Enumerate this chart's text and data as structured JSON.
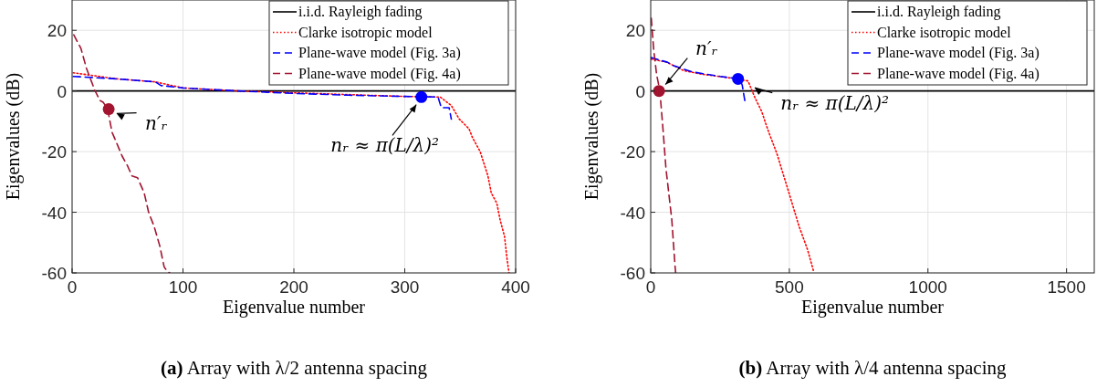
{
  "chart_data": [
    {
      "type": "line",
      "title": "(a) Array with λ/2 antenna spacing",
      "xlabel": "Eigenvalue number",
      "ylabel": "Eigenvalues (dB)",
      "xlim": [
        0,
        400
      ],
      "ylim": [
        -60,
        30
      ],
      "xticks": [
        0,
        100,
        200,
        300,
        400
      ],
      "yticks": [
        -60,
        -40,
        -20,
        0,
        20
      ],
      "grid": true,
      "legend": "top right",
      "series": [
        {
          "name": "i.i.d. Rayleigh fading",
          "color": "#000000",
          "line_style": "solid",
          "x": [
            0,
            400
          ],
          "values": [
            0,
            0
          ]
        },
        {
          "name": "Clarke isotropic model",
          "color": "#ff0000",
          "line_style": "dotted",
          "x": [
            1,
            40,
            75,
            100,
            150,
            200,
            250,
            300,
            332,
            342,
            349,
            358,
            361,
            368,
            375,
            378,
            383,
            386,
            390,
            392,
            394
          ],
          "values": [
            6,
            4,
            3,
            1,
            0,
            -0.6,
            -1.2,
            -1.8,
            -2,
            -4.8,
            -9.2,
            -12.5,
            -15.3,
            -20,
            -28,
            -33.6,
            -37,
            -42.5,
            -48,
            -54.7,
            -60
          ]
        },
        {
          "name": "Plane-wave model (Fig. 3a)",
          "color": "#0000ff",
          "line_style": "dashed",
          "x": [
            1,
            40,
            75,
            80,
            100,
            150,
            200,
            250,
            300,
            330,
            333,
            340,
            342
          ],
          "values": [
            4.8,
            4,
            3,
            1.8,
            1,
            0,
            -0.8,
            -1.4,
            -1.8,
            -2,
            -5.5,
            -5.5,
            -9.3
          ]
        },
        {
          "name": "Plane-wave model (Fig. 4a)",
          "color": "#a2142f",
          "line_style": "dashed",
          "x": [
            1.5,
            8,
            13,
            20.5,
            25,
            28,
            32,
            36,
            40,
            45,
            50,
            54,
            59,
            65,
            69,
            74,
            79,
            83,
            86,
            88
          ],
          "values": [
            18.5,
            14,
            7.4,
            0.2,
            -3.1,
            -3.7,
            -5.9,
            -13.6,
            -17,
            -21.4,
            -24.7,
            -28,
            -28.6,
            -33.6,
            -40,
            -44.7,
            -51,
            -58,
            -59.6,
            -60
          ]
        },
        {
          "type": "scatter",
          "color": "#a2142f",
          "marker": "circle",
          "x": [
            33
          ],
          "values": [
            -6
          ]
        },
        {
          "type": "scatter",
          "color": "#0000ff",
          "marker": "circle",
          "x": [
            315
          ],
          "values": [
            -2
          ]
        }
      ],
      "annotations": [
        {
          "text": "n′ᵣ",
          "x": 33,
          "y": -6
        },
        {
          "text": "nᵣ ≈ π(L/λ)²",
          "x": 315,
          "y": -2
        }
      ]
    },
    {
      "type": "line",
      "title": "(b) Array with λ/4 antenna spacing",
      "xlabel": "Eigenvalue number",
      "ylabel": "Eigenvalues (dB)",
      "xlim": [
        0,
        1600
      ],
      "ylim": [
        -60,
        30
      ],
      "xticks": [
        0,
        500,
        1000,
        1500
      ],
      "yticks": [
        -60,
        -40,
        -20,
        0,
        20
      ],
      "grid": true,
      "legend": "top right",
      "series": [
        {
          "name": "i.i.d. Rayleigh fading",
          "color": "#000000",
          "line_style": "solid",
          "x": [
            0,
            1600
          ],
          "values": [
            0,
            0
          ]
        },
        {
          "name": "Clarke isotropic model",
          "color": "#ff0000",
          "line_style": "dotted",
          "x": [
            1,
            58,
            119,
            180,
            302,
            351,
            376,
            400,
            425,
            455,
            498,
            535,
            566,
            588
          ],
          "values": [
            10.5,
            9.5,
            6.7,
            5.6,
            4.1,
            3.3,
            -2.2,
            -6.7,
            -13.4,
            -20.6,
            -33.4,
            -44.6,
            -52.4,
            -59.6
          ]
        },
        {
          "name": "Plane-wave model (Fig. 3a)",
          "color": "#0000ff",
          "line_style": "dashed",
          "x": [
            1,
            60,
            80,
            150,
            250,
            320,
            330,
            340
          ],
          "values": [
            11,
            9.5,
            8.4,
            6.3,
            4.8,
            4,
            2,
            -3.5
          ]
        },
        {
          "name": "Plane-wave model (Fig. 4a)",
          "color": "#a2142f",
          "line_style": "dashed",
          "x": [
            2,
            11,
            21,
            33,
            45,
            55,
            76,
            88,
            90
          ],
          "values": [
            24,
            13.4,
            5.6,
            0,
            -13.4,
            -25.6,
            -42.4,
            -58,
            -60
          ]
        },
        {
          "type": "scatter",
          "color": "#a2142f",
          "marker": "circle",
          "x": [
            30
          ],
          "values": [
            0
          ]
        },
        {
          "type": "scatter",
          "color": "#0000ff",
          "marker": "circle",
          "x": [
            315
          ],
          "values": [
            4
          ]
        }
      ],
      "annotations": [
        {
          "text": "n′ᵣ",
          "x": 30,
          "y": 0
        },
        {
          "text": "nᵣ ≈ π(L/λ)²",
          "x": 350,
          "y": 3
        }
      ]
    }
  ]
}
